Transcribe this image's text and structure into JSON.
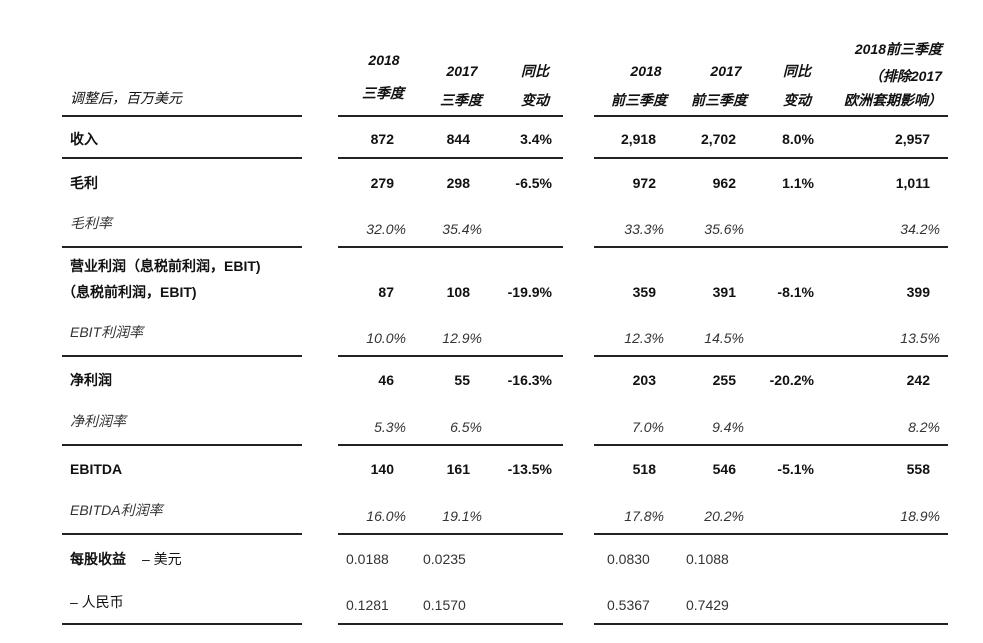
{
  "header": {
    "unit_label": "调整后，百万美元",
    "col1": [
      "2018",
      "三季度"
    ],
    "col2": [
      "2017",
      "三季度"
    ],
    "col3": [
      "同比",
      "变动"
    ],
    "col4": [
      "2018",
      "前三季度"
    ],
    "col5": [
      "2017",
      "前三季度"
    ],
    "col6": [
      "同比",
      "变动"
    ],
    "col7": [
      "2018前三季度",
      "（排除2017",
      "欧洲套期影响）"
    ]
  },
  "rows": {
    "revenue": {
      "label": "收入",
      "v": [
        "872",
        "844",
        "3.4%",
        "2,918",
        "2,702",
        "8.0%",
        "2,957"
      ]
    },
    "gross_profit": {
      "label": "毛利",
      "v": [
        "279",
        "298",
        "-6.5%",
        "972",
        "962",
        "1.1%",
        "1,011"
      ]
    },
    "gross_margin": {
      "label": "毛利率",
      "v": [
        "32.0%",
        "35.4%",
        "",
        "33.3%",
        "35.6%",
        "",
        "34.2%"
      ]
    },
    "ebit": {
      "label1": "营业利润（息税前利润，EBIT)",
      "label2": "（息税前利润，EBIT)",
      "v": [
        "87",
        "108",
        "-19.9%",
        "359",
        "391",
        "-8.1%",
        "399"
      ]
    },
    "ebit_margin": {
      "label": "EBIT利润率",
      "v": [
        "10.0%",
        "12.9%",
        "",
        "12.3%",
        "14.5%",
        "",
        "13.5%"
      ]
    },
    "net_profit": {
      "label": "净利润",
      "v": [
        "46",
        "55",
        "-16.3%",
        "203",
        "255",
        "-20.2%",
        "242"
      ]
    },
    "net_margin": {
      "label": "净利润率",
      "v": [
        "5.3%",
        "6.5%",
        "",
        "7.0%",
        "9.4%",
        "",
        "8.2%"
      ]
    },
    "ebitda": {
      "label": "EBITDA",
      "v": [
        "140",
        "161",
        "-13.5%",
        "518",
        "546",
        "-5.1%",
        "558"
      ]
    },
    "ebitda_margin": {
      "label": "EBITDA利润率",
      "v": [
        "16.0%",
        "19.1%",
        "",
        "17.8%",
        "20.2%",
        "",
        "18.9%"
      ]
    },
    "eps_usd": {
      "label": "每股收益",
      "sub": "– 美元",
      "v": [
        "0.0188",
        "0.0235",
        "0.0830",
        "0.1088"
      ]
    },
    "eps_rmb": {
      "label": "– 人民币",
      "v": [
        "0.1281",
        "0.1570",
        "0.5367",
        "0.7429"
      ]
    }
  }
}
